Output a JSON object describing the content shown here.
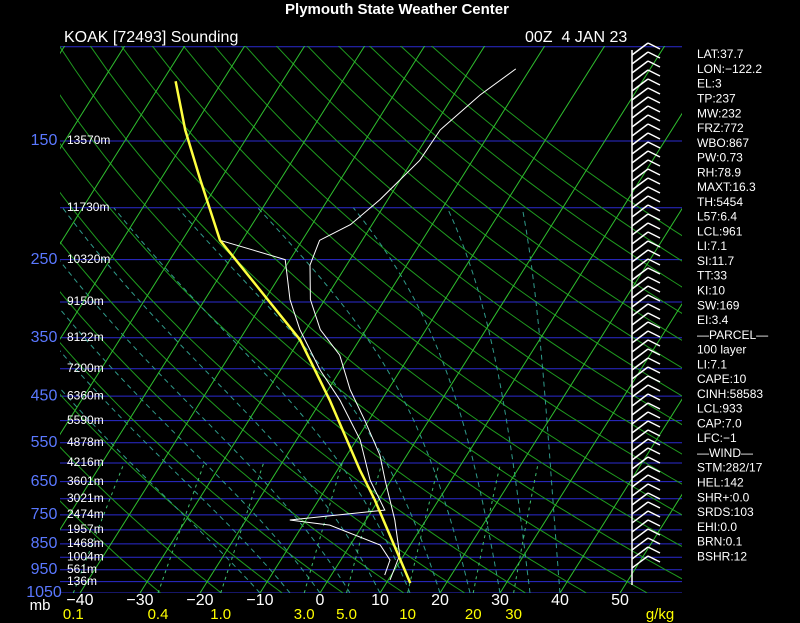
{
  "header": {
    "title": "Plymouth State Weather Center",
    "station": "KOAK [72493] Sounding",
    "time": "00Z  4 JAN 23"
  },
  "pressure_ticks": [
    150,
    250,
    350,
    450,
    550,
    650,
    750,
    850,
    950,
    1050
  ],
  "pressure_unit": "mb",
  "height_labels": [
    "13570m",
    "11730m",
    "10320m",
    "9150m",
    "8122m",
    "7200m",
    "6360m",
    "5590m",
    "4878m",
    "4216m",
    "3601m",
    "3021m",
    "2474m",
    "1957m",
    "1468m",
    "1004m",
    "561m",
    "136m"
  ],
  "temperature_ticks": [
    {
      "value": -40,
      "label": "−40"
    },
    {
      "value": -30,
      "label": "−30"
    },
    {
      "value": -20,
      "label": "−20"
    },
    {
      "value": -10,
      "label": "−10"
    },
    0,
    10,
    20,
    30,
    40,
    50
  ],
  "mixing_ratio_ticks": [
    0.1,
    0.4,
    {
      "value": 1,
      "label": "1.0"
    },
    {
      "value": 3,
      "label": "3.0"
    },
    {
      "value": 5,
      "label": "5.0"
    },
    10,
    20,
    30
  ],
  "mixing_ratio_unit": "g/kg",
  "sounding": {
    "temperature_pressure": [
      993,
      892,
      767,
      646,
      580,
      499,
      438,
      377,
      338,
      297,
      256,
      230,
      215,
      193,
      163,
      143,
      123,
      110
    ],
    "temperature": [
      10.3,
      9.3,
      4.8,
      -1.0,
      -4.5,
      -10.7,
      -16.3,
      -21.7,
      -27.6,
      -32.4,
      -36.1,
      -37.1,
      -33.6,
      -31.3,
      -28.8,
      -28.6,
      -25.6,
      -22.4
    ],
    "dewpoint_pressure": [
      972,
      911,
      854,
      784,
      767,
      735,
      646,
      543,
      458,
      402,
      338,
      297,
      250,
      230
    ],
    "dewpoint": [
      8.9,
      8.2,
      5.0,
      -5.5,
      -12.7,
      2.1,
      -3.5,
      -9.4,
      -16.9,
      -23.4,
      -31.0,
      -35.8,
      -40.8,
      -53.7
    ],
    "parcel_pressure": [
      1006,
      704,
      618,
      458,
      353,
      285,
      230,
      177,
      143,
      116
    ],
    "parcel": [
      14.0,
      -0.6,
      -6.3,
      -18.6,
      -29.9,
      -41.8,
      -53.7,
      -63.4,
      -71.1,
      -77.8
    ]
  },
  "stats": [
    "LAT:37.7",
    "LON:−122.2",
    "EL:3",
    "TP:237",
    "MW:232",
    "FRZ:772",
    "WBO:867",
    "PW:0.73",
    "RH:78.9",
    "MAXT:16.3",
    "TH:5454",
    "L57:6.4",
    "LCL:961",
    "LI:7.1",
    "SI:11.7",
    "TT:33",
    "KI:10",
    "SW:169",
    "EI:3.4",
    "—PARCEL—",
    "100 layer",
    "LI:7.1",
    "CAPE:10",
    "CINH:58583",
    "LCL:933",
    "CAP:7.0",
    "LFC:−1",
    "—WIND—",
    "STM:282/17",
    "HEL:142",
    "SHR+:0.0",
    "SRDS:103",
    "EHI:0.0",
    "BRN:0.1",
    "BSHR:12"
  ]
}
